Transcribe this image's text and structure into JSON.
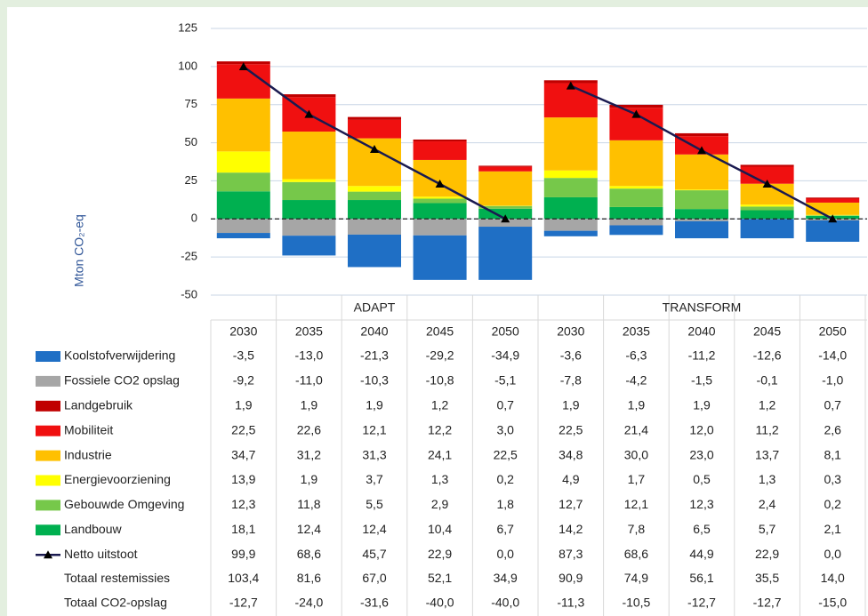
{
  "chart_data": {
    "type": "bar",
    "ylabel": "Mton CO₂-eq",
    "categories": [
      "2030",
      "2035",
      "2040",
      "2045",
      "2050",
      "2030",
      "2035",
      "2040",
      "2045",
      "2050"
    ],
    "groups": [
      {
        "name": "ADAPT",
        "count": 5
      },
      {
        "name": "TRANSFORM",
        "count": 5
      }
    ],
    "ylim": [
      -50,
      125
    ],
    "yticks": [
      -50,
      -25,
      0,
      25,
      50,
      75,
      100,
      125
    ],
    "grid": true,
    "series": [
      {
        "name": "Koolstofverwijdering",
        "color": "#1f6fc5",
        "values": [
          -3.5,
          -13.0,
          -21.3,
          -29.2,
          -34.9,
          -3.6,
          -6.3,
          -11.2,
          -12.6,
          -14.0
        ],
        "value_labels": [
          "-3,5",
          "-13,0",
          "-21,3",
          "-29,2",
          "-34,9",
          "-3,6",
          "-6,3",
          "-11,2",
          "-12,6",
          "-14,0"
        ]
      },
      {
        "name": "Fossiele CO2 opslag",
        "color": "#a6a6a6",
        "values": [
          -9.2,
          -11.0,
          -10.3,
          -10.8,
          -5.1,
          -7.8,
          -4.2,
          -1.5,
          -0.1,
          -1.0
        ],
        "value_labels": [
          "-9,2",
          "-11,0",
          "-10,3",
          "-10,8",
          "-5,1",
          "-7,8",
          "-4,2",
          "-1,5",
          "-0,1",
          "-1,0"
        ]
      },
      {
        "name": "Landgebruik",
        "color": "#c00000",
        "values": [
          1.9,
          1.9,
          1.9,
          1.2,
          0.7,
          1.9,
          1.9,
          1.9,
          1.2,
          0.7
        ],
        "value_labels": [
          "1,9",
          "1,9",
          "1,9",
          "1,2",
          "0,7",
          "1,9",
          "1,9",
          "1,9",
          "1,2",
          "0,7"
        ]
      },
      {
        "name": "Mobiliteit",
        "color": "#f01010",
        "values": [
          22.5,
          22.6,
          12.1,
          12.2,
          3.0,
          22.5,
          21.4,
          12.0,
          11.2,
          2.6
        ],
        "value_labels": [
          "22,5",
          "22,6",
          "12,1",
          "12,2",
          "3,0",
          "22,5",
          "21,4",
          "12,0",
          "11,2",
          "2,6"
        ]
      },
      {
        "name": "Industrie",
        "color": "#ffc000",
        "values": [
          34.7,
          31.2,
          31.3,
          24.1,
          22.5,
          34.8,
          30.0,
          23.0,
          13.7,
          8.1
        ],
        "value_labels": [
          "34,7",
          "31,2",
          "31,3",
          "24,1",
          "22,5",
          "34,8",
          "30,0",
          "23,0",
          "13,7",
          "8,1"
        ]
      },
      {
        "name": "Energievoorziening",
        "color": "#ffff00",
        "values": [
          13.9,
          1.9,
          3.7,
          1.3,
          0.2,
          4.9,
          1.7,
          0.5,
          1.3,
          0.3
        ],
        "value_labels": [
          "13,9",
          "1,9",
          "3,7",
          "1,3",
          "0,2",
          "4,9",
          "1,7",
          "0,5",
          "1,3",
          "0,3"
        ]
      },
      {
        "name": "Gebouwde Omgeving",
        "color": "#76c84a",
        "values": [
          12.3,
          11.8,
          5.5,
          2.9,
          1.8,
          12.7,
          12.1,
          12.3,
          2.4,
          0.2
        ],
        "value_labels": [
          "12,3",
          "11,8",
          "5,5",
          "2,9",
          "1,8",
          "12,7",
          "12,1",
          "12,3",
          "2,4",
          "0,2"
        ]
      },
      {
        "name": "Landbouw",
        "color": "#00b050",
        "values": [
          18.1,
          12.4,
          12.4,
          10.4,
          6.7,
          14.2,
          7.8,
          6.5,
          5.7,
          2.1
        ],
        "value_labels": [
          "18,1",
          "12,4",
          "12,4",
          "10,4",
          "6,7",
          "14,2",
          "7,8",
          "6,5",
          "5,7",
          "2,1"
        ]
      },
      {
        "name": "Netto uitstoot",
        "type": "line",
        "color": "#1a1a50",
        "values": [
          99.9,
          68.6,
          45.7,
          22.9,
          0.0,
          87.3,
          68.6,
          44.9,
          22.9,
          0.0
        ],
        "value_labels": [
          "99,9",
          "68,6",
          "45,7",
          "22,9",
          "0,0",
          "87,3",
          "68,6",
          "44,9",
          "22,9",
          "0,0"
        ]
      }
    ],
    "table_rows": [
      {
        "name": "Totaal restemissies",
        "values": [
          103.4,
          81.6,
          67.0,
          52.1,
          34.9,
          90.9,
          74.9,
          56.1,
          35.5,
          14.0
        ],
        "value_labels": [
          "103,4",
          "81,6",
          "67,0",
          "52,1",
          "34,9",
          "90,9",
          "74,9",
          "56,1",
          "35,5",
          "14,0"
        ]
      },
      {
        "name": "Totaal CO2-opslag",
        "values": [
          -12.7,
          -24.0,
          -31.6,
          -40.0,
          -40.0,
          -11.3,
          -10.5,
          -12.7,
          -12.7,
          -15.0
        ],
        "value_labels": [
          "-12,7",
          "-24,0",
          "-31,6",
          "-40,0",
          "-40,0",
          "-11,3",
          "-10,5",
          "-12,7",
          "-12,7",
          "-15,0"
        ]
      }
    ]
  }
}
